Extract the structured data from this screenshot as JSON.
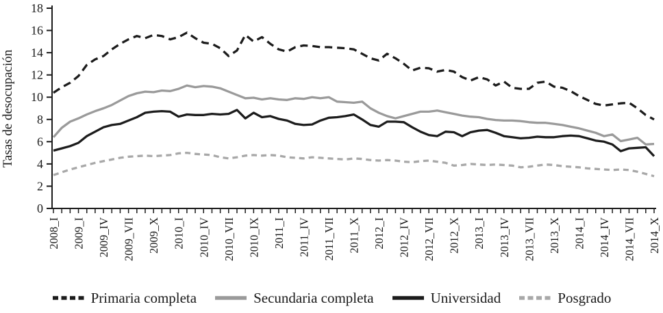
{
  "figure_title": "",
  "chart_data": {
    "type": "line",
    "title": "",
    "xlabel": "",
    "ylabel": "Tasas de desocupación",
    "ylim": [
      0,
      18
    ],
    "ytick_step": 2,
    "yticks": [
      0,
      2,
      4,
      6,
      8,
      10,
      12,
      14,
      16,
      18
    ],
    "grid": false,
    "legend_position": "bottom",
    "x_label_every_n_points": 3,
    "x_labels": [
      "2008_I",
      "2009_I",
      "2009_IV",
      "2009_VII",
      "2009_X",
      "2010_I",
      "2010_IV",
      "2010_VII",
      "2010_IX",
      "2011_I",
      "2011_IV",
      "2011_VII",
      "2011_X",
      "2012_I",
      "2012_IV",
      "2012_VII",
      "2012_X",
      "2013_I",
      "2013_IV",
      "2013_VII",
      "2013_X",
      "2014_I",
      "2014_IV",
      "2014_VII",
      "2014_X"
    ],
    "series": [
      {
        "name": "Primaria completa",
        "color": "#1c1c1c",
        "line_style": "dashed",
        "values": [
          10.4,
          10.9,
          11.3,
          11.9,
          12.9,
          13.4,
          13.7,
          14.3,
          14.8,
          15.2,
          15.5,
          15.3,
          15.6,
          15.5,
          15.2,
          15.4,
          15.8,
          15.3,
          14.9,
          14.8,
          14.4,
          13.7,
          14.2,
          15.6,
          15.0,
          15.4,
          14.8,
          14.3,
          14.1,
          14.5,
          14.65,
          14.6,
          14.5,
          14.5,
          14.45,
          14.4,
          14.3,
          13.9,
          13.5,
          13.3,
          13.9,
          13.5,
          13.0,
          12.4,
          12.65,
          12.6,
          12.3,
          12.45,
          12.3,
          11.8,
          11.5,
          11.8,
          11.6,
          11.05,
          11.4,
          10.85,
          10.75,
          10.75,
          11.3,
          11.4,
          10.95,
          10.85,
          10.55,
          10.1,
          9.75,
          9.4,
          9.25,
          9.35,
          9.45,
          9.5,
          9.0,
          8.4,
          8.0
        ]
      },
      {
        "name": "Secundaria completa",
        "color": "#9a9a9a",
        "line_style": "solid",
        "values": [
          6.4,
          7.25,
          7.8,
          8.1,
          8.45,
          8.75,
          9.0,
          9.3,
          9.7,
          10.1,
          10.35,
          10.5,
          10.45,
          10.6,
          10.55,
          10.75,
          11.05,
          10.9,
          11.0,
          10.95,
          10.8,
          10.5,
          10.2,
          9.9,
          9.95,
          9.8,
          9.9,
          9.8,
          9.75,
          9.9,
          9.85,
          10.0,
          9.9,
          10.0,
          9.6,
          9.55,
          9.5,
          9.6,
          9.0,
          8.6,
          8.3,
          8.1,
          8.3,
          8.5,
          8.7,
          8.7,
          8.8,
          8.65,
          8.5,
          8.35,
          8.25,
          8.2,
          8.05,
          7.95,
          7.9,
          7.9,
          7.85,
          7.75,
          7.7,
          7.7,
          7.6,
          7.5,
          7.35,
          7.2,
          7.0,
          6.8,
          6.5,
          6.65,
          6.05,
          6.2,
          6.35,
          5.75,
          5.8
        ]
      },
      {
        "name": "Universidad",
        "color": "#1c1c1c",
        "line_style": "solid",
        "values": [
          5.2,
          5.4,
          5.6,
          5.9,
          6.5,
          6.9,
          7.3,
          7.5,
          7.6,
          7.9,
          8.2,
          8.6,
          8.7,
          8.75,
          8.7,
          8.25,
          8.45,
          8.4,
          8.4,
          8.5,
          8.45,
          8.5,
          8.85,
          8.1,
          8.6,
          8.2,
          8.3,
          8.05,
          7.9,
          7.6,
          7.5,
          7.55,
          7.9,
          8.15,
          8.2,
          8.3,
          8.45,
          8.0,
          7.5,
          7.35,
          7.8,
          7.8,
          7.75,
          7.3,
          6.9,
          6.6,
          6.5,
          6.9,
          6.85,
          6.5,
          6.85,
          7.0,
          7.05,
          6.8,
          6.5,
          6.4,
          6.3,
          6.35,
          6.45,
          6.4,
          6.4,
          6.5,
          6.55,
          6.5,
          6.3,
          6.1,
          6.0,
          5.75,
          5.15,
          5.4,
          5.45,
          5.5,
          4.7
        ]
      },
      {
        "name": "Posgrado",
        "color": "#a8a8a8",
        "line_style": "dashed",
        "values": [
          3.0,
          3.25,
          3.5,
          3.7,
          3.9,
          4.1,
          4.25,
          4.4,
          4.55,
          4.65,
          4.7,
          4.75,
          4.7,
          4.75,
          4.8,
          4.95,
          5.0,
          4.9,
          4.85,
          4.8,
          4.6,
          4.5,
          4.6,
          4.75,
          4.8,
          4.75,
          4.8,
          4.75,
          4.6,
          4.55,
          4.5,
          4.6,
          4.55,
          4.5,
          4.45,
          4.4,
          4.5,
          4.45,
          4.35,
          4.3,
          4.35,
          4.3,
          4.2,
          4.15,
          4.25,
          4.3,
          4.2,
          4.1,
          3.85,
          3.9,
          4.0,
          3.95,
          3.9,
          3.95,
          3.9,
          3.85,
          3.7,
          3.75,
          3.85,
          3.95,
          3.9,
          3.8,
          3.75,
          3.7,
          3.6,
          3.55,
          3.5,
          3.45,
          3.5,
          3.45,
          3.3,
          3.1,
          2.9
        ]
      }
    ],
    "axis_color": "#1a1a1a",
    "tick_label_color": "#1a1a1a"
  }
}
